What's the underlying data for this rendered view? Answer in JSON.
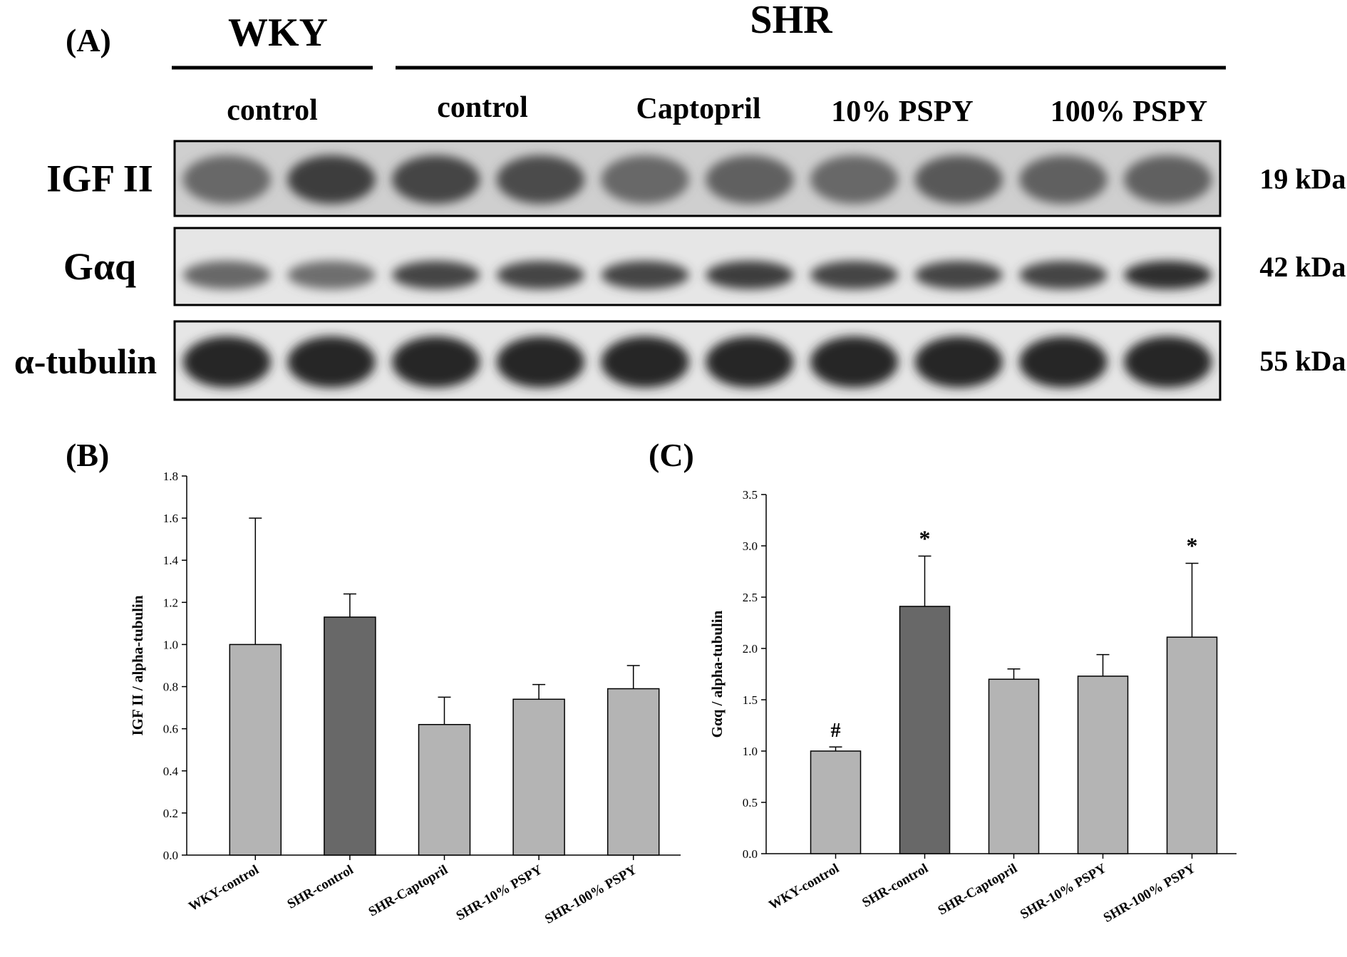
{
  "panel_a": {
    "label": "(A)",
    "groups": [
      "WKY",
      "SHR"
    ],
    "conditions": [
      "control",
      "control",
      "Captopril",
      "10% PSPY",
      "100% PSPY"
    ],
    "blots": [
      {
        "protein": "IGF II",
        "kda": "19 kDa",
        "intensity": [
          0.55,
          0.85,
          0.8,
          0.75,
          0.55,
          0.6,
          0.55,
          0.65,
          0.6,
          0.6
        ]
      },
      {
        "protein": "Gαq",
        "kda": "42 kDa",
        "intensity": [
          0.55,
          0.5,
          0.8,
          0.8,
          0.8,
          0.85,
          0.8,
          0.8,
          0.8,
          0.95
        ]
      },
      {
        "protein": "α-tubulin",
        "kda": "55 kDa",
        "intensity": [
          1,
          1,
          1,
          1,
          1,
          1,
          1,
          1,
          1,
          1
        ]
      }
    ]
  },
  "chart_data": [
    {
      "panel_label": "(B)",
      "type": "bar",
      "categories": [
        "WKY-control",
        "SHR-control",
        "SHR-Captopril",
        "SHR-10% PSPY",
        "SHR-100% PSPY"
      ],
      "values": [
        1.0,
        1.13,
        0.62,
        0.74,
        0.79
      ],
      "errors": [
        0.6,
        0.11,
        0.13,
        0.07,
        0.11
      ],
      "bar_colors": [
        "#b4b4b4",
        "#686868",
        "#b4b4b4",
        "#b4b4b4",
        "#b4b4b4"
      ],
      "annotations": [
        "",
        "",
        "",
        "",
        ""
      ],
      "ylabel": "IGF II / alpha-tubulin",
      "ylim": [
        0,
        1.8
      ],
      "yticks": [
        "0.0",
        "0.2",
        "0.4",
        "0.6",
        "0.8",
        "1.0",
        "1.2",
        "1.4",
        "1.6",
        "1.8"
      ],
      "grid": false
    },
    {
      "panel_label": "(C)",
      "type": "bar",
      "categories": [
        "WKY-control",
        "SHR-control",
        "SHR-Captopril",
        "SHR-10% PSPY",
        "SHR-100% PSPY"
      ],
      "values": [
        1.0,
        2.41,
        1.7,
        1.73,
        2.11
      ],
      "errors": [
        0.04,
        0.49,
        0.1,
        0.21,
        0.72
      ],
      "bar_colors": [
        "#b4b4b4",
        "#686868",
        "#b4b4b4",
        "#b4b4b4",
        "#b4b4b4"
      ],
      "annotations": [
        "#",
        "*",
        "",
        "",
        "*"
      ],
      "ylabel": "Gαq / alpha-tubulin",
      "ylim": [
        0,
        3.5
      ],
      "yticks": [
        "0.0",
        "0.5",
        "1.0",
        "1.5",
        "2.0",
        "2.5",
        "3.0",
        "3.5"
      ],
      "grid": false
    }
  ]
}
